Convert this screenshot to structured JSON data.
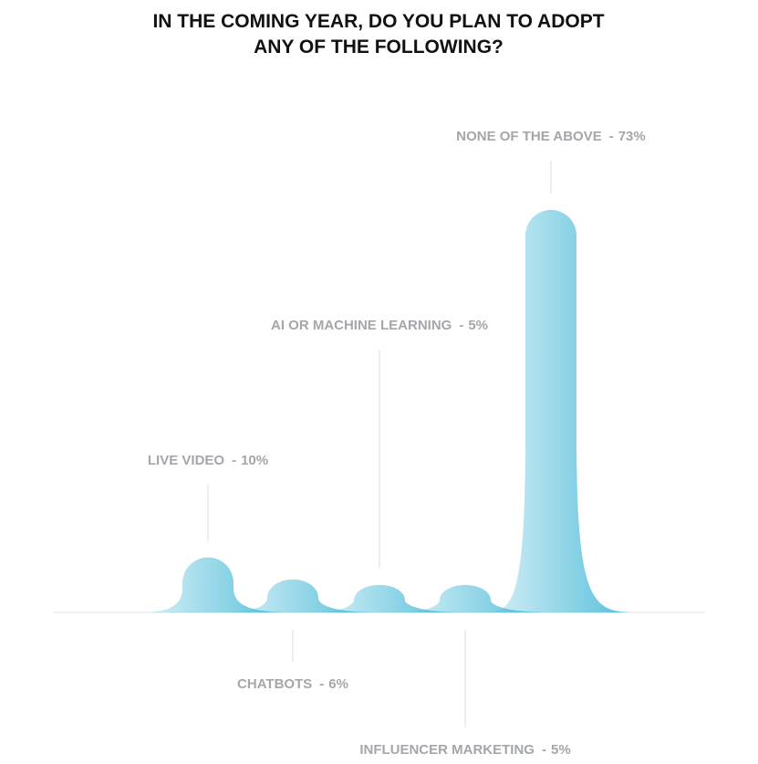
{
  "chart_data": {
    "type": "peak",
    "title": "IN THE COMING YEAR, DO YOU PLAN TO ADOPT ANY OF THE FOLLOWING?",
    "categories": [
      "LIVE VIDEO",
      "CHATBOTS",
      "AI OR MACHINE LEARNING",
      "INFLUENCER MARKETING",
      "NONE OF THE ABOVE"
    ],
    "values": [
      10,
      6,
      5,
      5,
      73
    ],
    "value_labels": [
      "10%",
      "6%",
      "5%",
      "5%",
      "73%"
    ],
    "separator": "-",
    "color": "#4fbcd9"
  }
}
